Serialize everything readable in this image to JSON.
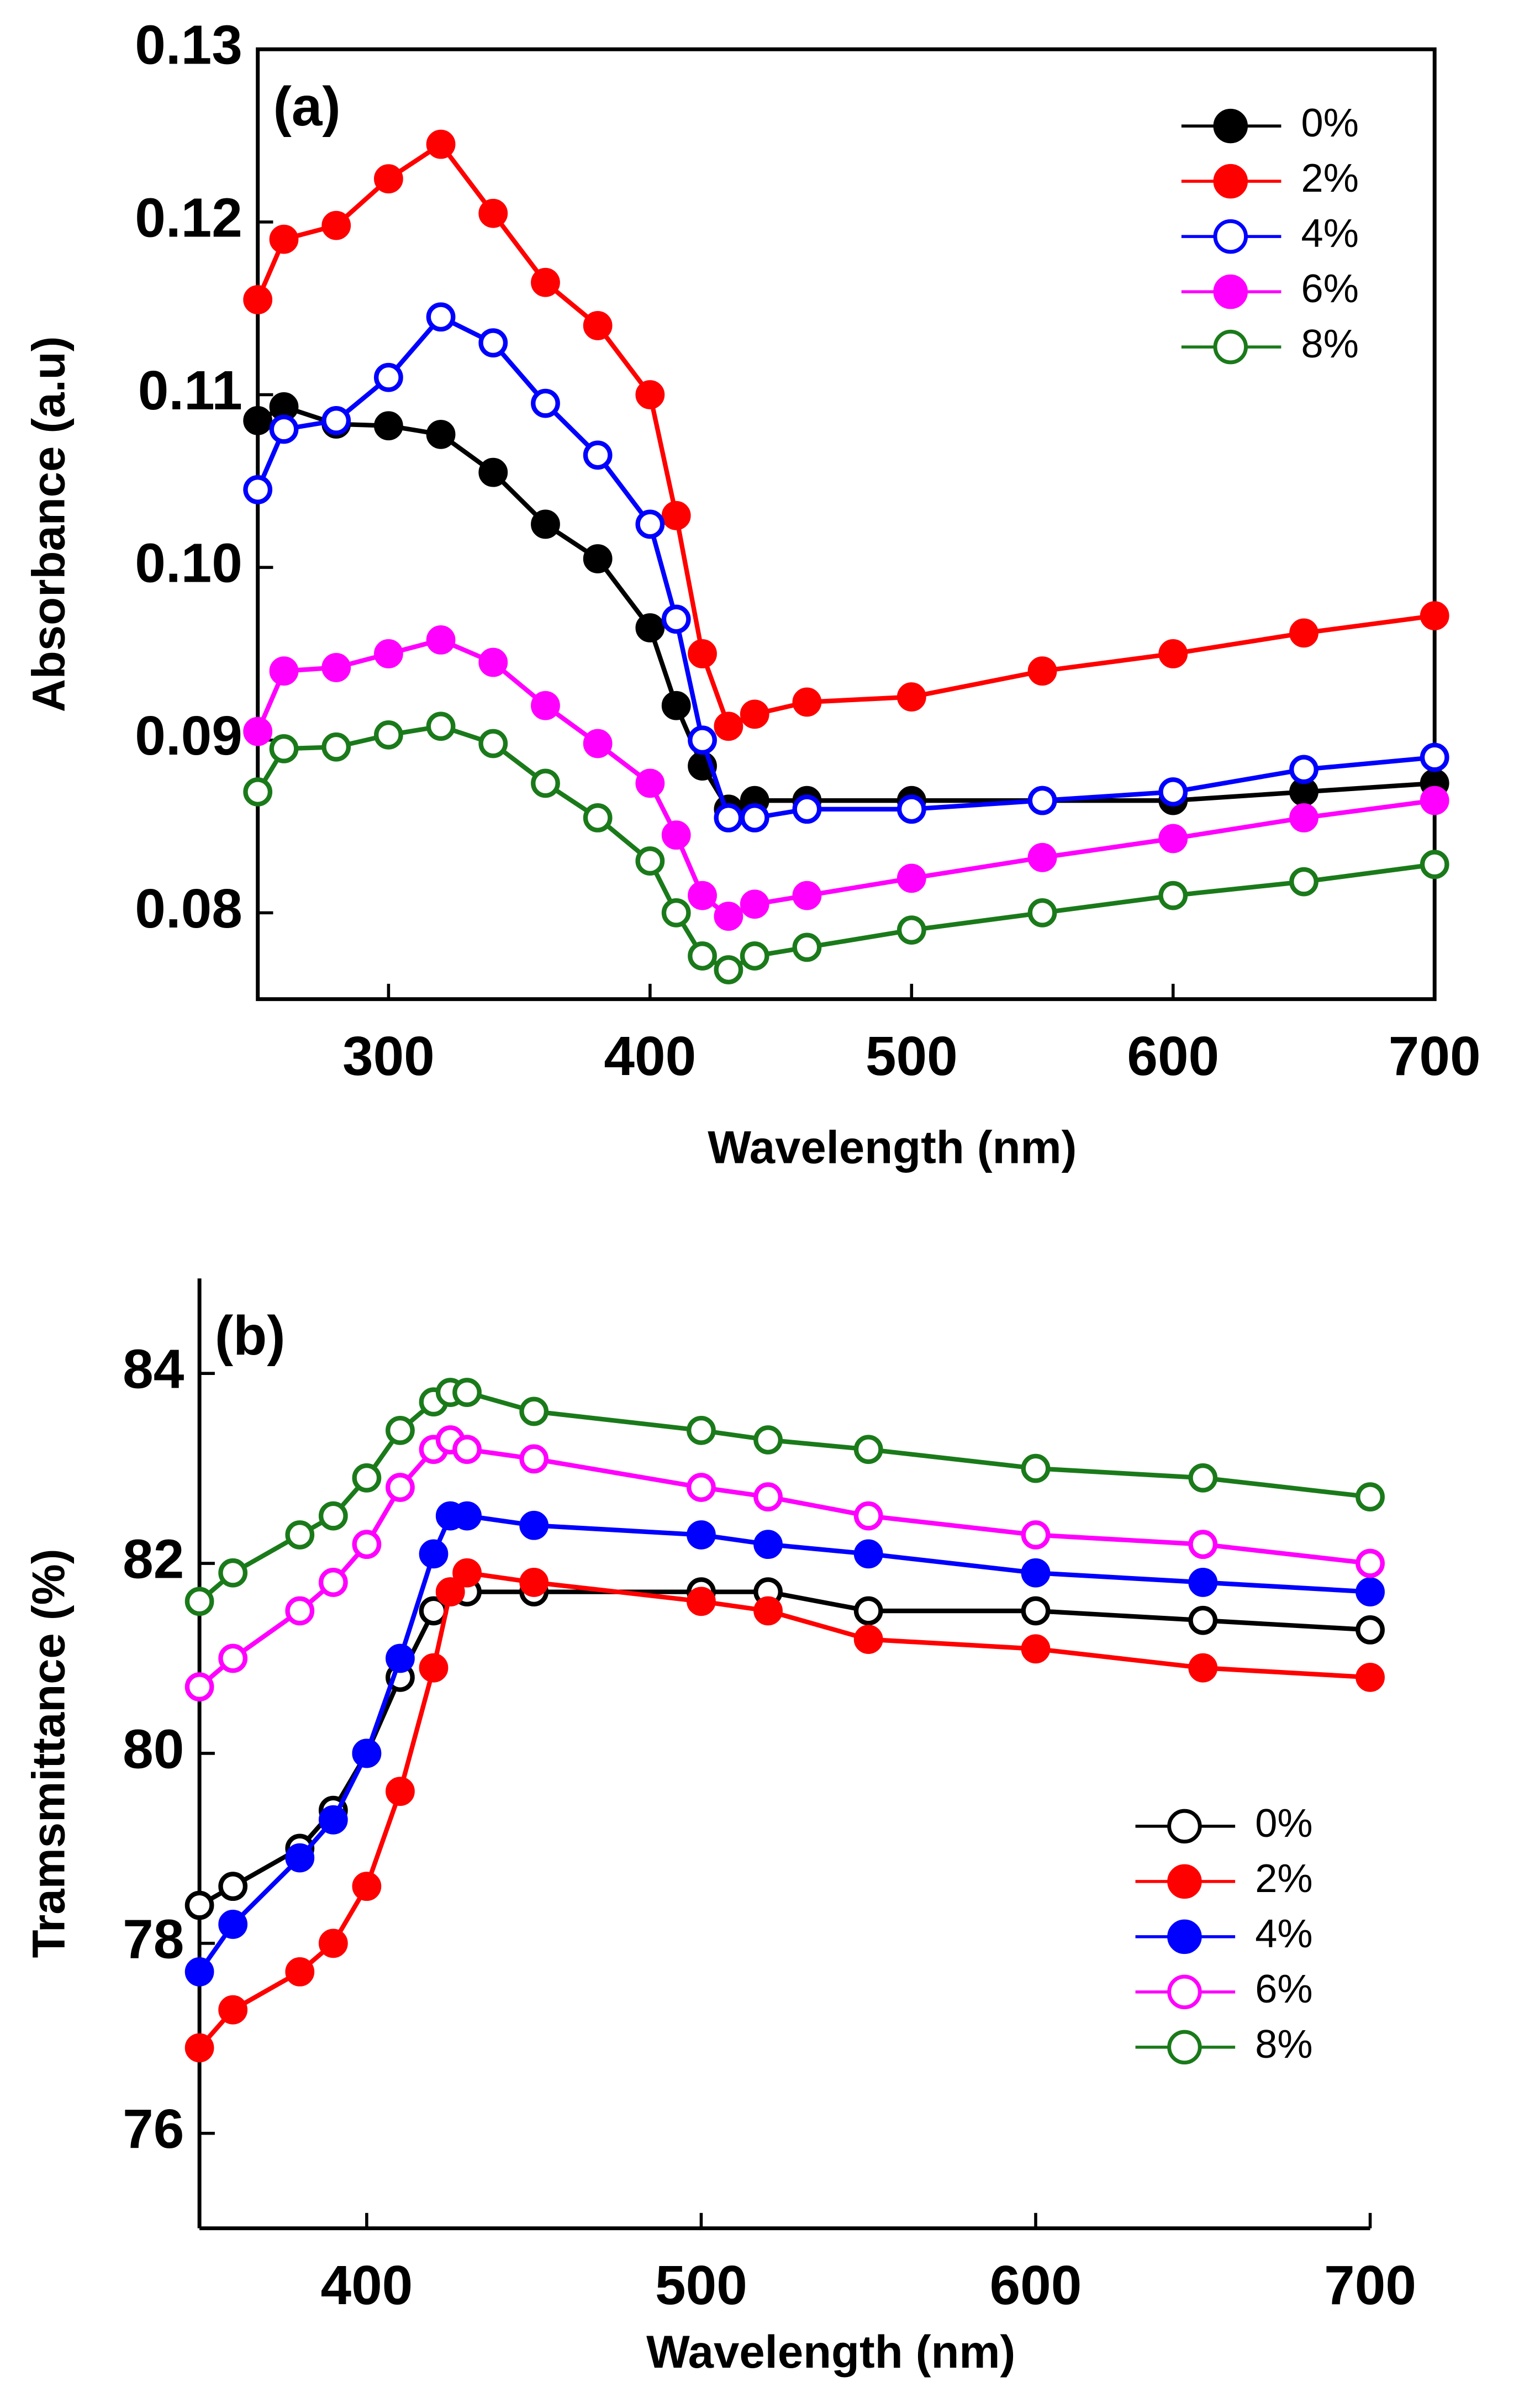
{
  "chart_data": [
    {
      "type": "line",
      "title": "(a)",
      "x_label": "Wavelength (nm)",
      "y_label": "Absorbance (a.u)",
      "xlim": [
        250,
        700
      ],
      "xticks": [
        300,
        400,
        500,
        600,
        700
      ],
      "ylim": [
        0.075,
        0.13
      ],
      "yticks": [
        0.08,
        0.09,
        {
          "value": 0.1,
          "label": "0.10"
        },
        0.11,
        0.12,
        0.13
      ],
      "legend": "top-right",
      "x": [
        250,
        260,
        280,
        300,
        320,
        340,
        360,
        380,
        400,
        410,
        420,
        430,
        440,
        460,
        500,
        550,
        600,
        650,
        700
      ],
      "series": [
        {
          "name": "0%",
          "color": "#000000",
          "marker": "filled",
          "values": [
            0.1085,
            0.1093,
            0.1083,
            0.1082,
            0.1077,
            0.1055,
            0.1025,
            0.1005,
            0.0965,
            0.092,
            0.0885,
            0.086,
            0.0865,
            0.0865,
            0.0865,
            0.0865,
            0.0865,
            0.087,
            0.0875
          ]
        },
        {
          "name": "2%",
          "color": "#ff0000",
          "marker": "filled",
          "values": [
            0.1155,
            0.119,
            0.1198,
            0.1225,
            0.1245,
            0.1205,
            0.1165,
            0.114,
            0.11,
            0.103,
            0.095,
            0.0908,
            0.0915,
            0.0922,
            0.0925,
            0.094,
            0.095,
            0.0962,
            0.0972
          ]
        },
        {
          "name": "4%",
          "color": "#0000ff",
          "marker": "open",
          "values": [
            0.1045,
            0.108,
            0.1085,
            0.111,
            0.1145,
            0.113,
            0.1095,
            0.1065,
            0.1025,
            0.097,
            0.09,
            0.0855,
            0.0855,
            0.086,
            0.086,
            0.0865,
            0.087,
            0.0883,
            0.089
          ]
        },
        {
          "name": "6%",
          "color": "#ff00ff",
          "marker": "filled",
          "values": [
            0.0905,
            0.094,
            0.0942,
            0.095,
            0.0958,
            0.0945,
            0.092,
            0.0898,
            0.0875,
            0.0845,
            0.081,
            0.0798,
            0.0805,
            0.081,
            0.082,
            0.0832,
            0.0843,
            0.0855,
            0.0865
          ]
        },
        {
          "name": "8%",
          "color": "#1a7a1a",
          "marker": "open",
          "values": [
            0.087,
            0.0895,
            0.0896,
            0.0903,
            0.0908,
            0.0898,
            0.0875,
            0.0855,
            0.083,
            0.08,
            0.0775,
            0.0767,
            0.0775,
            0.078,
            0.079,
            0.08,
            0.081,
            0.0818,
            0.0828
          ]
        }
      ]
    },
    {
      "type": "line",
      "title": "(b)",
      "x_label": "Wavelength (nm)",
      "y_label": "Tramsmittance (%)",
      "xlim": [
        350,
        700
      ],
      "xticks": [
        400,
        500,
        600,
        700
      ],
      "ylim": [
        75,
        85
      ],
      "yticks": [
        76,
        78,
        80,
        82,
        84
      ],
      "legend": "center-right",
      "x": [
        350,
        360,
        380,
        390,
        400,
        410,
        420,
        425,
        430,
        450,
        500,
        520,
        550,
        600,
        650,
        700
      ],
      "series": [
        {
          "name": "0%",
          "color": "#000000",
          "marker": "open",
          "values": [
            78.4,
            78.6,
            79.0,
            79.4,
            80.0,
            80.8,
            81.5,
            81.7,
            81.7,
            81.7,
            81.7,
            81.7,
            81.5,
            81.5,
            81.4,
            81.3
          ]
        },
        {
          "name": "2%",
          "color": "#ff0000",
          "marker": "filled",
          "values": [
            76.9,
            77.3,
            77.7,
            78.0,
            78.6,
            79.6,
            80.9,
            81.7,
            81.9,
            81.8,
            81.6,
            81.5,
            81.2,
            81.1,
            80.9,
            80.8
          ]
        },
        {
          "name": "4%",
          "color": "#0000ff",
          "marker": "filled",
          "values": [
            77.7,
            78.2,
            78.9,
            79.3,
            80.0,
            81.0,
            82.1,
            82.5,
            82.5,
            82.4,
            82.3,
            82.2,
            82.1,
            81.9,
            81.8,
            81.7
          ]
        },
        {
          "name": "6%",
          "color": "#ff00ff",
          "marker": "open",
          "values": [
            80.7,
            81.0,
            81.5,
            81.8,
            82.2,
            82.8,
            83.2,
            83.3,
            83.2,
            83.1,
            82.8,
            82.7,
            82.5,
            82.3,
            82.2,
            82.0
          ]
        },
        {
          "name": "8%",
          "color": "#1a7a1a",
          "marker": "open",
          "values": [
            81.6,
            81.9,
            82.3,
            82.5,
            82.9,
            83.4,
            83.7,
            83.8,
            83.8,
            83.6,
            83.4,
            83.3,
            83.2,
            83.0,
            82.9,
            82.7
          ]
        }
      ]
    }
  ]
}
